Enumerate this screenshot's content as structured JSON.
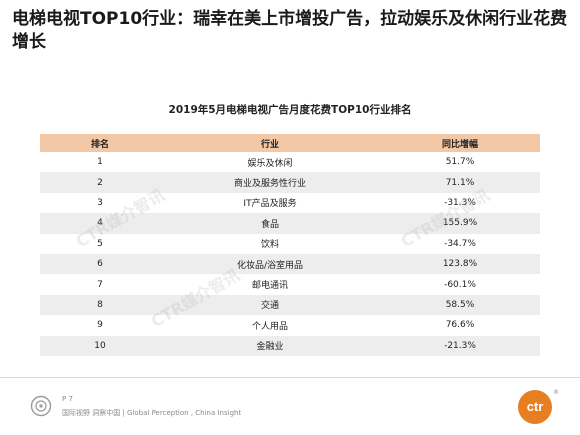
{
  "slide": {
    "title": "电梯电视TOP10行业：瑞幸在美上市增投广告，拉动娱乐及休闲行业花费增长"
  },
  "table": {
    "title": "2019年5月电梯电视广告月度花费TOP10行业排名",
    "headers": [
      "排名",
      "行业",
      "同比增幅"
    ],
    "rows": [
      {
        "rank": "1",
        "industry": "娱乐及休闲",
        "growth": "51.7%"
      },
      {
        "rank": "2",
        "industry": "商业及服务性行业",
        "growth": "71.1%"
      },
      {
        "rank": "3",
        "industry": "IT产品及服务",
        "growth": "-31.3%"
      },
      {
        "rank": "4",
        "industry": "食品",
        "growth": "155.9%"
      },
      {
        "rank": "5",
        "industry": "饮料",
        "growth": "-34.7%"
      },
      {
        "rank": "6",
        "industry": "化妆品/浴室用品",
        "growth": "123.8%"
      },
      {
        "rank": "7",
        "industry": "邮电通讯",
        "growth": "-60.1%"
      },
      {
        "rank": "8",
        "industry": "交通",
        "growth": "58.5%"
      },
      {
        "rank": "9",
        "industry": "个人用品",
        "growth": "76.6%"
      },
      {
        "rank": "10",
        "industry": "金融业",
        "growth": "-21.3%"
      }
    ]
  },
  "watermark": {
    "text": "CTR媒介智讯"
  },
  "footer": {
    "page": "P 7",
    "slogan": "国际视野 洞察中国 | Global Perception , China Insight",
    "brand": "ctr",
    "registered": "®",
    "accent_color": "#e87e22"
  }
}
